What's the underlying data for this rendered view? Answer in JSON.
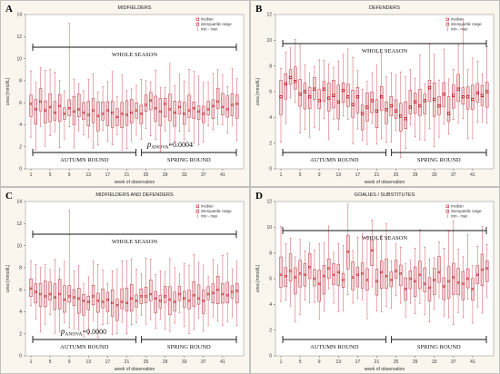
{
  "legend": {
    "median": "median",
    "iqr": "interquartile range",
    "minmax": "min - max"
  },
  "colors": {
    "box_fill": "#f6d2d6",
    "box_stroke": "#b4202a",
    "whisker": "#c9404a",
    "median": "#c0131f",
    "plot_bg": "#faf6ee",
    "frame": "#9a9a9a"
  },
  "chart_data": [
    {
      "type": "box",
      "panel": "A",
      "title": "MIDFIELDERS",
      "xlabel": "week of observation",
      "ylabel": "urea [mmol/L]",
      "ylim": [
        0,
        14
      ],
      "yticks": [
        0,
        2,
        4,
        6,
        8,
        10,
        12,
        14
      ],
      "xticks": [
        1,
        5,
        9,
        13,
        17,
        21,
        25,
        29,
        33,
        37,
        41
      ],
      "weeks_count": 44,
      "annotations": {
        "whole": "WHOLE SEASON",
        "autumn": "AUTUMN ROUND",
        "spring": "SPRING ROUND",
        "p_sub": "ANOVA",
        "p_val": "=0.0004"
      },
      "medians": [
        5.9,
        5.4,
        6.1,
        5.3,
        5.6,
        5.1,
        5.7,
        5.0,
        5.5,
        5.2,
        5.4,
        5.1,
        4.9,
        5.3,
        4.8,
        5.0,
        5.3,
        5.1,
        4.7,
        5.0,
        4.9,
        5.1,
        5.3,
        5.0,
        5.8,
        6.2,
        5.5,
        5.2,
        5.9,
        5.4,
        5.1,
        5.6,
        5.0,
        5.3,
        5.5,
        5.2,
        5.0,
        5.4,
        5.7,
        6.1,
        5.6,
        5.4,
        5.8,
        5.9
      ]
    },
    {
      "type": "box",
      "panel": "B",
      "title": "DEFENDERS",
      "xlabel": "week of observation",
      "ylabel": "urea [mmol/L]",
      "ylim": [
        0,
        12
      ],
      "yticks": [
        0,
        2,
        4,
        6,
        8,
        10,
        12
      ],
      "xticks": [
        1,
        5,
        9,
        13,
        17,
        21,
        25,
        29,
        33,
        37,
        41
      ],
      "weeks_count": 44,
      "annotations": {
        "whole": "WHOLE SEASON",
        "autumn": "AUTUMN ROUND",
        "spring": "SPRING ROUND"
      },
      "medians": [
        5.6,
        6.6,
        7.1,
        6.8,
        5.8,
        6.0,
        5.6,
        6.2,
        5.3,
        6.2,
        5.5,
        5.7,
        5.2,
        6.1,
        5.6,
        5.0,
        5.6,
        4.3,
        4.8,
        5.3,
        4.5,
        5.6,
        4.6,
        4.9,
        4.5,
        4.1,
        3.9,
        4.8,
        5.2,
        4.9,
        5.3,
        6.3,
        5.4,
        4.9,
        5.8,
        4.3,
        5.7,
        6.2,
        5.6,
        5.6,
        5.4,
        5.9,
        5.7,
        6.0
      ]
    },
    {
      "type": "box",
      "panel": "C",
      "title": "MIDFIELDERS AND DEFENDERS",
      "xlabel": "week of observation",
      "ylabel": "urea [mmol/L]",
      "ylim": [
        0,
        14
      ],
      "yticks": [
        0,
        2,
        4,
        6,
        8,
        10,
        12,
        14
      ],
      "xticks": [
        1,
        5,
        9,
        13,
        17,
        21,
        25,
        29,
        33,
        37,
        41
      ],
      "weeks_count": 44,
      "annotations": {
        "whole": "WHOLE SEASON",
        "autumn": "AUTUMN ROUND",
        "spring": "SPRING ROUND",
        "p_sub": "ANOVA",
        "p_val": "=0.0000"
      },
      "medians": [
        6.1,
        5.8,
        5.6,
        5.4,
        5.6,
        5.3,
        5.6,
        5.1,
        5.4,
        5.3,
        5.2,
        5.0,
        4.9,
        5.4,
        5.0,
        4.9,
        5.1,
        4.8,
        4.6,
        4.9,
        4.8,
        5.2,
        5.0,
        5.4,
        5.4,
        5.6,
        5.2,
        5.0,
        5.4,
        5.1,
        4.9,
        5.6,
        5.2,
        5.0,
        5.5,
        5.2,
        5.0,
        5.6,
        5.7,
        6.0,
        5.6,
        5.5,
        5.8,
        5.9
      ]
    },
    {
      "type": "box",
      "panel": "D",
      "title": "GOALIES / SUBSTITUTES",
      "xlabel": "week of observation",
      "ylabel": "urea [mmol/L]",
      "ylim": [
        0,
        12
      ],
      "yticks": [
        0,
        2,
        4,
        6,
        8,
        10,
        12
      ],
      "xticks": [
        1,
        5,
        9,
        13,
        17,
        21,
        25,
        29,
        33,
        37,
        41
      ],
      "weeks_count": 44,
      "annotations": {
        "whole": "WHOLE SEASON",
        "autumn": "AUTUMN ROUND",
        "spring": "SPRING ROUND"
      },
      "medians": [
        6.3,
        6.2,
        6.6,
        6.1,
        6.4,
        6.3,
        6.9,
        6.0,
        5.6,
        6.2,
        6.8,
        6.3,
        6.5,
        5.9,
        8.1,
        6.1,
        6.3,
        6.4,
        5.9,
        8.2,
        5.8,
        6.5,
        6.2,
        5.9,
        6.6,
        6.4,
        5.2,
        6.0,
        5.8,
        6.3,
        5.6,
        5.3,
        5.9,
        6.5,
        5.4,
        5.8,
        6.1,
        5.7,
        5.6,
        6.0,
        5.2,
        6.3,
        6.7,
        6.8
      ]
    }
  ]
}
